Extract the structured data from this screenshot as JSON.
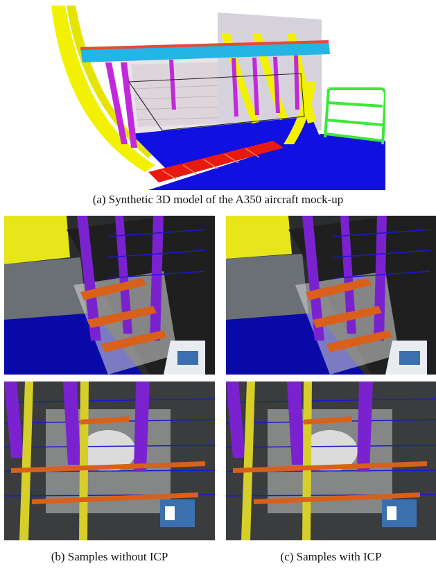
{
  "figure": {
    "caption_a": "(a) Synthetic 3D model of the A350 aircraft mock-up",
    "caption_b": "(b) Samples without ICP",
    "caption_c": "(c) Samples with ICP"
  },
  "colors": {
    "frame_yellow": "#f2f200",
    "floor_blue": "#1010e0",
    "beam_cyan": "#24b4e6",
    "strut_magenta": "#c02ad8",
    "truss_red": "#e81a10",
    "railing_green": "#3be83b",
    "photo_purple": "#7a22d0",
    "photo_orange": "#d8601a"
  }
}
